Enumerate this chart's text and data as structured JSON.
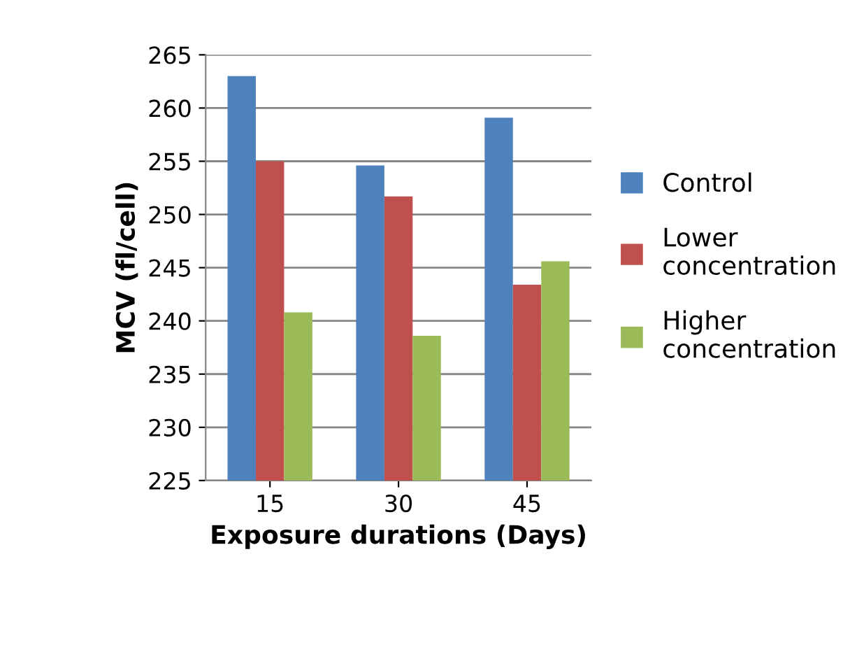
{
  "chart_data": {
    "type": "bar",
    "xlabel": "Exposure durations (Days)",
    "ylabel": "MCV (fl/cell)",
    "categories": [
      "15",
      "30",
      "45"
    ],
    "series": [
      {
        "name": "Control",
        "color": "#4f81bd",
        "values": [
          263.0,
          254.6,
          259.1
        ]
      },
      {
        "name": "Lower concentration",
        "color": "#c0504d",
        "values": [
          255.0,
          251.7,
          243.4
        ]
      },
      {
        "name": "Higher concentration",
        "color": "#9bbb59",
        "values": [
          240.8,
          238.6,
          245.6
        ]
      }
    ],
    "ylim": [
      225,
      265
    ],
    "yticks": [
      225,
      230,
      235,
      240,
      245,
      250,
      255,
      260,
      265
    ],
    "grid": "y",
    "legend": "right"
  }
}
